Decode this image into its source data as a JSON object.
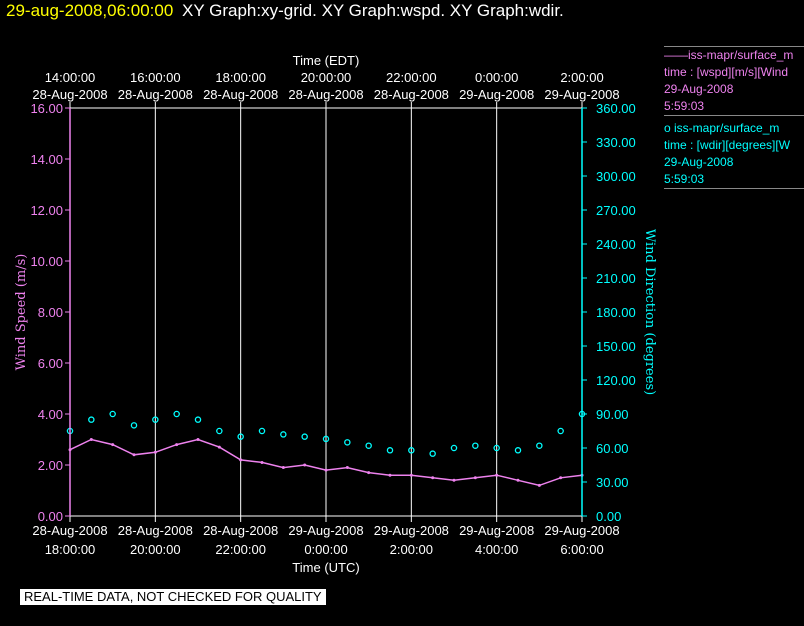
{
  "header": {
    "time": "29-aug-2008,06:00:00",
    "graphs": "XY Graph:xy-grid.  XY Graph:wspd.  XY Graph:wdir."
  },
  "legend": {
    "wspd": {
      "line1": "——iss-mapr/surface_m",
      "line2": "time : [wspd][m/s][Wind",
      "line3": "29-Aug-2008",
      "line4": "5:59:03"
    },
    "wdir": {
      "line1": "o  iss-mapr/surface_m",
      "line2": "time : [wdir][degrees][W",
      "line3": "29-Aug-2008",
      "line4": "5:59:03"
    }
  },
  "footer": "REAL-TIME DATA, NOT CHECKED FOR QUALITY",
  "colors": {
    "wspd": "#ee82ee",
    "wdir": "#00ffff",
    "header_time": "#ffff00"
  },
  "chart_data": {
    "type": "line",
    "top_axis": {
      "title": "Time (EDT)",
      "ticks": [
        {
          "time": "14:00:00",
          "date": "28-Aug-2008"
        },
        {
          "time": "16:00:00",
          "date": "28-Aug-2008"
        },
        {
          "time": "18:00:00",
          "date": "28-Aug-2008"
        },
        {
          "time": "20:00:00",
          "date": "28-Aug-2008"
        },
        {
          "time": "22:00:00",
          "date": "28-Aug-2008"
        },
        {
          "time": "0:00:00",
          "date": "29-Aug-2008"
        },
        {
          "time": "2:00:00",
          "date": "29-Aug-2008"
        }
      ]
    },
    "bottom_axis": {
      "title": "Time (UTC)",
      "ticks": [
        {
          "date": "28-Aug-2008",
          "time": "18:00:00"
        },
        {
          "date": "28-Aug-2008",
          "time": "20:00:00"
        },
        {
          "date": "28-Aug-2008",
          "time": "22:00:00"
        },
        {
          "date": "29-Aug-2008",
          "time": "0:00:00"
        },
        {
          "date": "29-Aug-2008",
          "time": "2:00:00"
        },
        {
          "date": "29-Aug-2008",
          "time": "4:00:00"
        },
        {
          "date": "29-Aug-2008",
          "time": "6:00:00"
        }
      ]
    },
    "y_left": {
      "label": "Wind Speed (m/s)",
      "ylim": [
        0,
        16
      ],
      "ticks": [
        "0.00",
        "2.00",
        "4.00",
        "6.00",
        "8.00",
        "10.00",
        "12.00",
        "14.00",
        "16.00"
      ]
    },
    "y_right": {
      "label": "Wind Direction (degrees)",
      "ylim": [
        0,
        360
      ],
      "ticks": [
        "0.00",
        "30.00",
        "60.00",
        "90.00",
        "120.00",
        "150.00",
        "180.00",
        "210.00",
        "240.00",
        "270.00",
        "300.00",
        "330.00",
        "360.00"
      ]
    },
    "x_range_utc": [
      "2008-08-28 18:00",
      "2008-08-29 06:00"
    ],
    "grid": "vertical",
    "series": [
      {
        "name": "iss-mapr/surface_m time : [wspd][m/s]",
        "axis": "left",
        "style": "line",
        "x": [
          "18:00",
          "18:30",
          "19:00",
          "19:30",
          "20:00",
          "20:30",
          "21:00",
          "21:30",
          "22:00",
          "22:30",
          "23:00",
          "23:30",
          "00:00",
          "00:30",
          "01:00",
          "01:30",
          "02:00",
          "02:30",
          "03:00",
          "03:30",
          "04:00",
          "04:30",
          "05:00",
          "05:30",
          "06:00"
        ],
        "values": [
          2.6,
          3.0,
          2.8,
          2.4,
          2.5,
          2.8,
          3.0,
          2.7,
          2.2,
          2.1,
          1.9,
          2.0,
          1.8,
          1.9,
          1.7,
          1.6,
          1.6,
          1.5,
          1.4,
          1.5,
          1.6,
          1.4,
          1.2,
          1.5,
          1.6
        ]
      },
      {
        "name": "iss-mapr/surface_m time : [wdir][degrees]",
        "axis": "right",
        "style": "scatter",
        "x": [
          "18:00",
          "18:30",
          "19:00",
          "19:30",
          "20:00",
          "20:30",
          "21:00",
          "21:30",
          "22:00",
          "22:30",
          "23:00",
          "23:30",
          "00:00",
          "00:30",
          "01:00",
          "01:30",
          "02:00",
          "02:30",
          "03:00",
          "03:30",
          "04:00",
          "04:30",
          "05:00",
          "05:30",
          "06:00"
        ],
        "values": [
          75,
          85,
          90,
          80,
          85,
          90,
          85,
          75,
          70,
          75,
          72,
          70,
          68,
          65,
          62,
          58,
          58,
          55,
          60,
          62,
          60,
          58,
          62,
          75,
          90
        ]
      }
    ]
  }
}
